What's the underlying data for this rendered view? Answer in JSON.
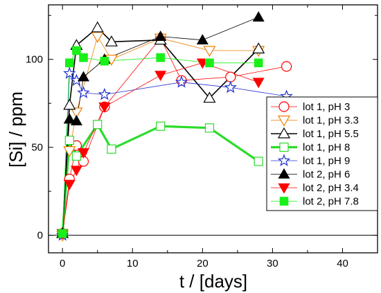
{
  "chart_data": {
    "type": "scatter",
    "xlabel": "t / [days]",
    "ylabel": "[Si] / ppm",
    "xlim": [
      -2,
      45
    ],
    "ylim": [
      -10,
      131
    ],
    "x_ticks": [
      0,
      10,
      20,
      30,
      40
    ],
    "y_ticks": [
      0,
      50,
      100
    ],
    "grid": false,
    "legend_position": "right",
    "series": [
      {
        "name": "lot 1, pH 3",
        "marker": "circle-open",
        "color": "#ff0000",
        "line_width": 0.8,
        "points": [
          [
            0,
            1
          ],
          [
            1,
            32
          ],
          [
            2,
            51
          ],
          [
            3,
            42
          ],
          [
            6,
            73
          ],
          [
            14,
            112
          ],
          [
            17,
            88
          ],
          [
            24,
            90
          ],
          [
            32,
            96
          ]
        ]
      },
      {
        "name": "lot 1, pH 3.3",
        "marker": "triangle-down-open",
        "color": "#f07d00",
        "line_width": 0.8,
        "points": [
          [
            0,
            0
          ],
          [
            1,
            48
          ],
          [
            2,
            70
          ],
          [
            5,
            113
          ],
          [
            7,
            100
          ],
          [
            14,
            112
          ],
          [
            21,
            105
          ],
          [
            28,
            105
          ]
        ]
      },
      {
        "name": "lot 1, pH 5.5",
        "marker": "triangle-up-open",
        "color": "#000000",
        "line_width": 1.6,
        "points": [
          [
            0,
            1
          ],
          [
            1,
            74
          ],
          [
            2,
            108
          ],
          [
            5,
            118
          ],
          [
            7,
            110
          ],
          [
            14,
            111
          ],
          [
            21,
            78
          ],
          [
            28,
            106
          ]
        ]
      },
      {
        "name": "lot 1, pH 8",
        "marker": "square-open",
        "color": "#2bdc2b",
        "line_width": 3.2,
        "points": [
          [
            0,
            1
          ],
          [
            1,
            54
          ],
          [
            2,
            45
          ],
          [
            5,
            63
          ],
          [
            7,
            49
          ],
          [
            14,
            62
          ],
          [
            21,
            61
          ],
          [
            28,
            42
          ]
        ]
      },
      {
        "name": "lot 1, pH 9",
        "marker": "star-open",
        "color": "#1f2fd0",
        "line_width": 0.8,
        "points": [
          [
            0,
            0
          ],
          [
            1,
            92
          ],
          [
            2,
            88
          ],
          [
            3,
            81
          ],
          [
            6,
            80
          ],
          [
            17,
            87
          ],
          [
            24,
            84
          ],
          [
            32,
            79
          ]
        ]
      },
      {
        "name": "lot 2, pH 6",
        "marker": "triangle-up-filled",
        "color": "#000000",
        "line_width": 0.8,
        "points": [
          [
            0,
            1
          ],
          [
            1,
            66
          ],
          [
            2,
            65
          ],
          [
            3,
            90
          ],
          [
            6,
            100
          ],
          [
            14,
            113
          ],
          [
            20,
            111
          ],
          [
            28,
            124
          ]
        ]
      },
      {
        "name": "lot 2, pH 3.4",
        "marker": "triangle-down-filled",
        "color": "#ff0000",
        "line_width": 0.8,
        "points": [
          [
            0,
            1
          ],
          [
            1,
            29
          ],
          [
            2,
            37
          ],
          [
            3,
            47
          ],
          [
            6,
            73
          ],
          [
            14,
            91
          ],
          [
            20,
            98
          ],
          [
            28,
            87
          ]
        ]
      },
      {
        "name": "lot 2, pH 7.8",
        "marker": "square-filled",
        "color": "#18f018",
        "line_width": 0.8,
        "points": [
          [
            0,
            1
          ],
          [
            1,
            98
          ],
          [
            2,
            105
          ],
          [
            3,
            101
          ],
          [
            6,
            99
          ],
          [
            14,
            101
          ],
          [
            21,
            98
          ],
          [
            28,
            98
          ]
        ]
      }
    ]
  }
}
